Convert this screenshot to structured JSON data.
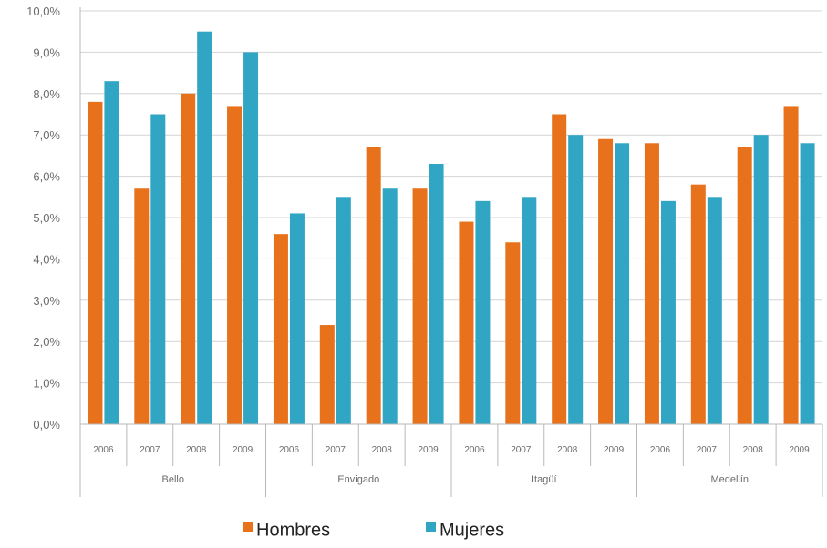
{
  "chart_data": {
    "type": "bar",
    "title": "",
    "xlabel": "",
    "ylabel": "",
    "ylim": [
      0,
      10
    ],
    "y_ticks": [
      "0,0%",
      "1,0%",
      "2,0%",
      "3,0%",
      "4,0%",
      "5,0%",
      "6,0%",
      "7,0%",
      "8,0%",
      "9,0%",
      "10,0%"
    ],
    "groups": [
      {
        "label": "Bello",
        "categories": [
          "2006",
          "2007",
          "2008",
          "2009"
        ]
      },
      {
        "label": "Envigado",
        "categories": [
          "2006",
          "2007",
          "2008",
          "2009"
        ]
      },
      {
        "label": "Itagüí",
        "categories": [
          "2006",
          "2007",
          "2008",
          "2009"
        ]
      },
      {
        "label": "Medellín",
        "categories": [
          "2006",
          "2007",
          "2008",
          "2009"
        ]
      }
    ],
    "series": [
      {
        "name": "Hombres",
        "color": "#e8721c",
        "values": [
          7.8,
          5.7,
          8.0,
          7.7,
          4.6,
          2.4,
          6.7,
          5.7,
          4.9,
          4.4,
          7.5,
          6.9,
          6.8,
          5.8,
          6.7,
          7.7
        ]
      },
      {
        "name": "Mujeres",
        "color": "#31a6c4",
        "values": [
          8.3,
          7.5,
          9.5,
          9.0,
          5.1,
          5.5,
          5.7,
          6.3,
          5.4,
          5.5,
          7.0,
          6.8,
          5.4,
          5.5,
          7.0,
          6.8
        ]
      }
    ],
    "grid": true,
    "legend": "bottom-center"
  }
}
